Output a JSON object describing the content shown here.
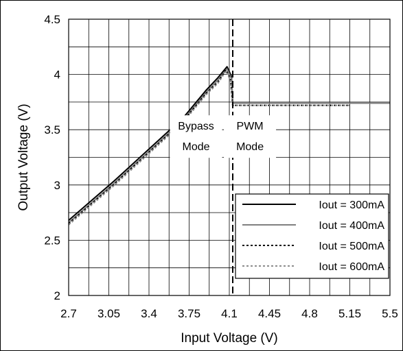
{
  "chart_data": {
    "type": "line",
    "title": "",
    "xlabel": "Input Voltage (V)",
    "ylabel": "Output Voltage (V)",
    "xlim": [
      2.7,
      5.5
    ],
    "ylim": [
      2.0,
      4.5
    ],
    "x_ticks": [
      2.7,
      3.05,
      3.4,
      3.75,
      4.1,
      4.45,
      4.8,
      5.15,
      5.5
    ],
    "x_tick_labels": [
      "2.7",
      "3.05",
      "3.4",
      "3.75",
      "4.1",
      "4.45",
      "4.8",
      "5.15",
      "5.5"
    ],
    "y_ticks": [
      2,
      2.5,
      3,
      3.5,
      4,
      4.5
    ],
    "y_tick_labels": [
      "2",
      "2.5",
      "3",
      "3.5",
      "4",
      "4.5"
    ],
    "minor_x_step": 0.175,
    "minor_y_step": 0.25,
    "grid": true,
    "legend_position": "bottom-right",
    "mode_boundary_x": 4.13,
    "annotations": [
      {
        "id": "bypass",
        "lines": [
          "Bypass",
          "Mode"
        ],
        "x": 3.81,
        "y": 3.5
      },
      {
        "id": "pwm",
        "lines": [
          "PWM",
          "Mode"
        ],
        "x": 4.28,
        "y": 3.5
      }
    ],
    "series": [
      {
        "name": "Iout = 300mA",
        "color": "#000000",
        "style": "solid",
        "x": [
          2.7,
          2.9,
          3.1,
          3.3,
          3.5,
          3.7,
          3.9,
          4.0,
          4.08,
          4.12,
          4.13,
          4.5,
          5.0,
          5.5
        ],
        "y": [
          2.68,
          2.86,
          3.04,
          3.23,
          3.42,
          3.61,
          3.86,
          3.97,
          4.07,
          3.98,
          3.74,
          3.74,
          3.74,
          3.74
        ]
      },
      {
        "name": "Iout = 400mA",
        "color": "#7f7f7f",
        "style": "solid",
        "x": [
          2.7,
          2.9,
          3.1,
          3.3,
          3.5,
          3.7,
          3.9,
          4.0,
          4.08,
          4.12,
          4.13,
          4.5,
          5.0,
          5.5
        ],
        "y": [
          2.66,
          2.84,
          3.02,
          3.21,
          3.4,
          3.59,
          3.84,
          3.95,
          4.05,
          3.96,
          3.74,
          3.74,
          3.74,
          3.74
        ]
      },
      {
        "name": "Iout = 500mA",
        "color": "#000000",
        "style": "dotted",
        "x": [
          2.7,
          2.9,
          3.1,
          3.3,
          3.5,
          3.7,
          3.9,
          4.0,
          4.07,
          4.11,
          4.13,
          4.5,
          5.0,
          5.15
        ],
        "y": [
          2.65,
          2.83,
          3.01,
          3.2,
          3.39,
          3.58,
          3.83,
          3.93,
          4.04,
          3.96,
          3.72,
          3.72,
          3.72,
          3.72
        ]
      },
      {
        "name": "Iout = 600mA",
        "color": "#8c8c8c",
        "style": "dotted",
        "x": [
          2.7,
          2.9,
          3.1,
          3.3,
          3.5,
          3.7,
          3.9,
          4.0,
          4.07,
          4.11,
          4.13,
          4.5,
          5.0,
          5.15
        ],
        "y": [
          2.64,
          2.82,
          3.0,
          3.19,
          3.38,
          3.57,
          3.82,
          3.92,
          4.03,
          3.95,
          3.72,
          3.72,
          3.72,
          3.72
        ]
      }
    ]
  }
}
